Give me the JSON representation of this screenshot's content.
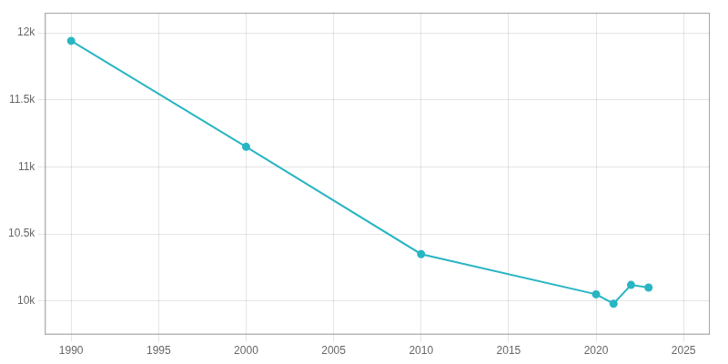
{
  "chart_data": {
    "type": "line",
    "x": [
      1990,
      2000,
      2010,
      2020,
      2021,
      2022,
      2023
    ],
    "values": [
      11940,
      11150,
      10350,
      10050,
      9980,
      10120,
      10100
    ],
    "color": "#29b5c3",
    "marker": "circle",
    "xlim": [
      1988.5,
      2026.5
    ],
    "xticks": [
      1990,
      1995,
      2000,
      2005,
      2010,
      2015,
      2020,
      2025
    ],
    "ylim": [
      9750,
      12150
    ],
    "yticks": [
      {
        "value": 10000,
        "label": "10k"
      },
      {
        "value": 10500,
        "label": "10.5k"
      },
      {
        "value": 11000,
        "label": "11k"
      },
      {
        "value": 11500,
        "label": "11.5k"
      },
      {
        "value": 12000,
        "label": "12k"
      }
    ],
    "grid": true
  }
}
